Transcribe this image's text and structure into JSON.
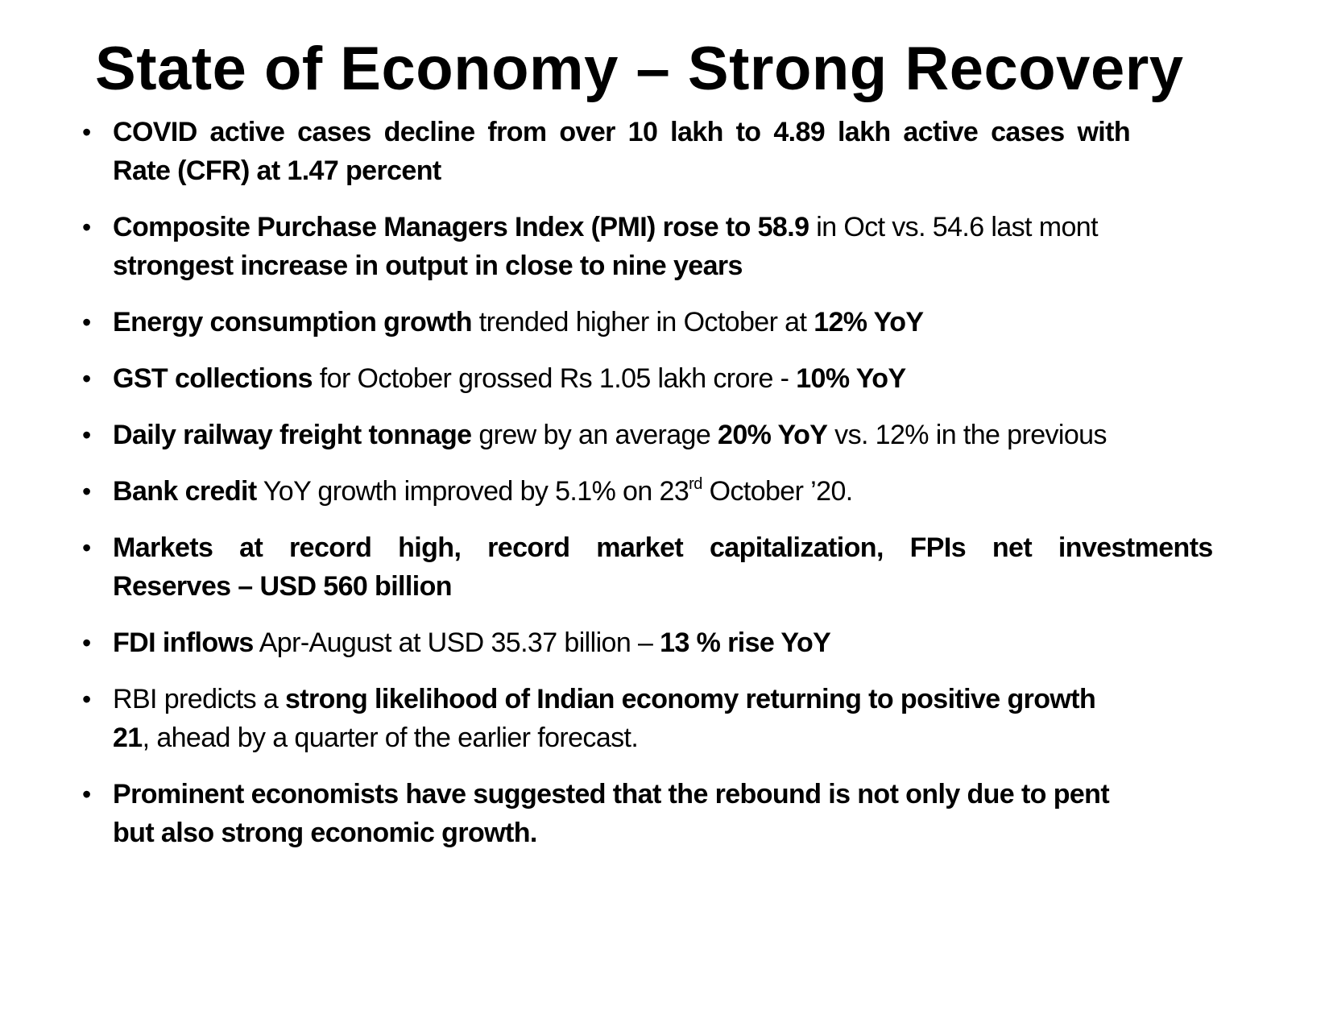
{
  "title": "State of Economy – Strong Recovery",
  "bullets": [
    {
      "lines": [
        [
          {
            "text": "COVID active cases decline from over 10 lakh to 4.89 lakh active cases with",
            "bold": true
          }
        ],
        [
          {
            "text": "Rate (CFR) at 1.47 percent",
            "bold": true
          }
        ]
      ]
    },
    {
      "lines": [
        [
          {
            "text": "Composite Purchase Managers Index (PMI) rose to 58.9",
            "bold": true
          },
          {
            "text": " in Oct vs. 54.6 last mont",
            "bold": false
          }
        ],
        [
          {
            "text": "strongest increase in output in close to nine years",
            "bold": true
          }
        ]
      ]
    },
    {
      "lines": [
        [
          {
            "text": "Energy consumption growth",
            "bold": true
          },
          {
            "text": " trended higher in October at ",
            "bold": false
          },
          {
            "text": "12% YoY",
            "bold": true
          }
        ]
      ]
    },
    {
      "lines": [
        [
          {
            "text": "GST collections",
            "bold": true
          },
          {
            "text": " for October grossed Rs 1.05 lakh crore - ",
            "bold": false
          },
          {
            "text": "10%  YoY",
            "bold": true
          }
        ]
      ]
    },
    {
      "lines": [
        [
          {
            "text": "Daily railway freight tonnage",
            "bold": true
          },
          {
            "text": " grew by an average ",
            "bold": false
          },
          {
            "text": "20% YoY",
            "bold": true
          },
          {
            "text": " vs. 12% in the previous",
            "bold": false
          }
        ]
      ]
    },
    {
      "lines": [
        [
          {
            "text": "Bank credit",
            "bold": true
          },
          {
            "text": " YoY growth improved by 5.1% on 23",
            "bold": false
          },
          {
            "text": "rd",
            "bold": false,
            "sup": true
          },
          {
            "text": " October ’20.",
            "bold": false
          }
        ]
      ]
    },
    {
      "lines": [
        [
          {
            "text": "Markets at record high, record market capitalization, FPIs net investments",
            "bold": true
          }
        ],
        [
          {
            "text": "Reserves – USD 560 billion",
            "bold": true
          }
        ]
      ]
    },
    {
      "lines": [
        [
          {
            "text": "FDI inflows",
            "bold": true
          },
          {
            "text": " Apr-August at USD 35.37 billion – ",
            "bold": false
          },
          {
            "text": "13 % rise YoY",
            "bold": true
          }
        ]
      ]
    },
    {
      "lines": [
        [
          {
            "text": "RBI predicts a ",
            "bold": false
          },
          {
            "text": "strong likelihood of Indian economy returning to positive growth",
            "bold": true
          }
        ],
        [
          {
            "text": "21",
            "bold": true
          },
          {
            "text": ", ahead by a quarter of the earlier forecast.",
            "bold": false
          }
        ]
      ]
    },
    {
      "lines": [
        [
          {
            "text": "Prominent economists have suggested that the rebound is not only due to pent",
            "bold": true
          }
        ],
        [
          {
            "text": "but also strong economic growth.",
            "bold": true
          }
        ]
      ]
    }
  ]
}
